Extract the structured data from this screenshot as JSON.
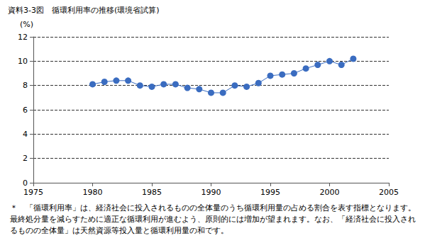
{
  "chart_data": {
    "type": "line",
    "title": "資料3-3図　循環利用率の推移(環境省試算)",
    "y_label": "(%)",
    "x": [
      1980,
      1981,
      1982,
      1983,
      1984,
      1985,
      1986,
      1987,
      1988,
      1989,
      1990,
      1991,
      1992,
      1993,
      1994,
      1995,
      1996,
      1997,
      1998,
      1999,
      2000,
      2001,
      2002
    ],
    "values": [
      8.1,
      8.3,
      8.4,
      8.4,
      8.0,
      7.9,
      8.1,
      8.1,
      7.8,
      7.7,
      7.4,
      7.4,
      8.0,
      7.9,
      8.2,
      8.8,
      8.9,
      9.0,
      9.4,
      9.7,
      10.0,
      9.7,
      10.2
    ],
    "color": "#3a6cc0",
    "marker": "circle",
    "xlim": [
      1975,
      2005
    ],
    "xticks": [
      1975,
      1980,
      1985,
      1990,
      1995,
      2000,
      2005
    ],
    "ylim": [
      0,
      12
    ],
    "yticks": [
      0,
      2,
      4,
      6,
      8,
      10,
      12
    ],
    "grid": true,
    "annotation": "＊　「循環利用率」は、経済社会に投入されるものの全体量のうち循環利用量の占める割合を表す指標となります。最終処分量を減らすために適正な循環利用が進むよう、原則的には増加が望まれます。なお、「経済社会に投入されるものの全体量」は天然資源等投入量と循環利用量の和です。"
  }
}
